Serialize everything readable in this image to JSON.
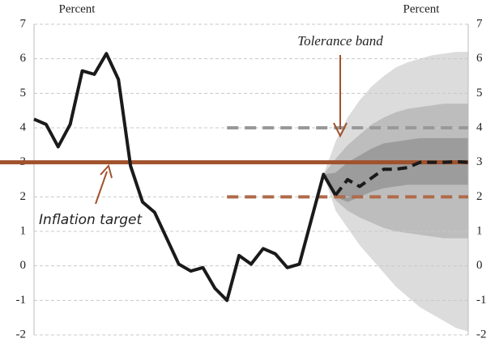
{
  "chart_data": {
    "type": "line",
    "y_label_left": "Percent",
    "y_label_right": "Percent",
    "categories": [
      null,
      null,
      null,
      null,
      null,
      null,
      null,
      null,
      null,
      null,
      null,
      null,
      null,
      null,
      null,
      null,
      null,
      null,
      null,
      null,
      null,
      null,
      null,
      null,
      null,
      null,
      null,
      null,
      null,
      null,
      null,
      null,
      null,
      null,
      null,
      null,
      null
    ],
    "ylim": [
      -2,
      7
    ],
    "yticks": [
      -2,
      -1,
      0,
      1,
      2,
      3,
      4,
      5,
      6,
      7
    ],
    "y2lim": [
      -2,
      7
    ],
    "y2ticks": [
      -2,
      -1,
      0,
      1,
      2,
      3,
      4,
      5,
      6,
      7
    ],
    "grid": true,
    "bands": [
      {
        "color": "#dcdcdc",
        "lower": [
          null,
          null,
          null,
          null,
          null,
          null,
          null,
          null,
          null,
          null,
          null,
          null,
          null,
          null,
          null,
          null,
          null,
          null,
          null,
          null,
          null,
          null,
          null,
          null,
          2.65,
          1.6,
          1.1,
          0.6,
          0.2,
          -0.2,
          -0.6,
          -0.9,
          -1.2,
          -1.4,
          -1.6,
          -1.8,
          -1.9
        ],
        "upper": [
          null,
          null,
          null,
          null,
          null,
          null,
          null,
          null,
          null,
          null,
          null,
          null,
          null,
          null,
          null,
          null,
          null,
          null,
          null,
          null,
          null,
          null,
          null,
          null,
          2.65,
          3.6,
          4.3,
          4.8,
          5.2,
          5.5,
          5.75,
          5.9,
          6.0,
          6.1,
          6.15,
          6.2,
          6.2
        ]
      },
      {
        "color": "#bdbdbd",
        "lower": [
          null,
          null,
          null,
          null,
          null,
          null,
          null,
          null,
          null,
          null,
          null,
          null,
          null,
          null,
          null,
          null,
          null,
          null,
          null,
          null,
          null,
          null,
          null,
          null,
          2.65,
          1.9,
          1.6,
          1.4,
          1.25,
          1.1,
          1.0,
          0.95,
          0.9,
          0.85,
          0.8,
          0.8,
          0.8
        ],
        "upper": [
          null,
          null,
          null,
          null,
          null,
          null,
          null,
          null,
          null,
          null,
          null,
          null,
          null,
          null,
          null,
          null,
          null,
          null,
          null,
          null,
          null,
          null,
          null,
          null,
          2.65,
          3.1,
          3.5,
          3.8,
          4.1,
          4.3,
          4.45,
          4.55,
          4.6,
          4.65,
          4.7,
          4.7,
          4.7
        ]
      },
      {
        "color": "#9c9c9c",
        "lower": [
          null,
          null,
          null,
          null,
          null,
          null,
          null,
          null,
          null,
          null,
          null,
          null,
          null,
          null,
          null,
          null,
          null,
          null,
          null,
          null,
          null,
          null,
          null,
          null,
          2.65,
          2.0,
          1.85,
          2.0,
          2.15,
          2.25,
          2.3,
          2.35,
          2.35,
          2.35,
          2.35,
          2.35,
          2.35
        ],
        "upper": [
          null,
          null,
          null,
          null,
          null,
          null,
          null,
          null,
          null,
          null,
          null,
          null,
          null,
          null,
          null,
          null,
          null,
          null,
          null,
          null,
          null,
          null,
          null,
          null,
          2.65,
          2.7,
          3.0,
          3.2,
          3.4,
          3.55,
          3.6,
          3.65,
          3.7,
          3.7,
          3.7,
          3.7,
          3.7
        ]
      }
    ],
    "reference_lines": [
      {
        "value": 3,
        "color": "#a0522d",
        "dashed": false,
        "start": 0
      },
      {
        "value": 4,
        "color": "#999999",
        "dashed": true,
        "start": 16
      },
      {
        "value": 2,
        "color": "#b06a4a",
        "dashed": true,
        "start": 16
      }
    ],
    "series": [
      {
        "color": "#1a1a1a",
        "dashed": false,
        "values": [
          4.25,
          4.1,
          3.45,
          4.1,
          5.65,
          5.55,
          6.15,
          5.4,
          2.9,
          1.85,
          1.55,
          0.8,
          0.05,
          -0.15,
          -0.05,
          -0.65,
          -1.0,
          0.3,
          0.05,
          0.5,
          0.35,
          -0.05,
          0.05,
          1.35,
          2.65,
          2.05,
          null,
          null,
          null,
          null,
          null,
          null,
          null,
          null,
          null,
          null,
          null
        ]
      },
      {
        "color": "#1a1a1a",
        "dashed": true,
        "values": [
          null,
          null,
          null,
          null,
          null,
          null,
          null,
          null,
          null,
          null,
          null,
          null,
          null,
          null,
          null,
          null,
          null,
          null,
          null,
          null,
          null,
          null,
          null,
          null,
          null,
          2.05,
          2.5,
          2.3,
          2.55,
          2.8,
          2.8,
          2.85,
          3.0,
          3.0,
          3.0,
          3.02,
          3.0
        ]
      }
    ],
    "annotations": [
      {
        "text": "Tolerance band",
        "color": "#a0522d"
      },
      {
        "text": "Inflation target",
        "color": "#a0522d"
      }
    ]
  }
}
